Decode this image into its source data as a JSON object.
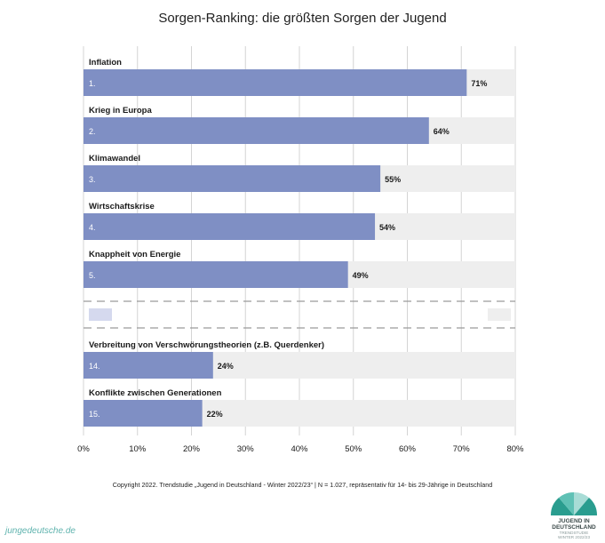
{
  "title": "Sorgen-Ranking: die größten Sorgen der Jugend",
  "chart_data": {
    "type": "bar",
    "orientation": "horizontal",
    "xlim": [
      0,
      80
    ],
    "xticks": [
      "0%",
      "10%",
      "20%",
      "30%",
      "40%",
      "50%",
      "60%",
      "70%",
      "80%"
    ],
    "grid": true,
    "bar_color": "#7f8fc4",
    "track_color": "#eeeeee",
    "items": [
      {
        "label": "Inflation",
        "rank": "1.",
        "value": 71,
        "value_label": "71%"
      },
      {
        "label": "Krieg in Europa",
        "rank": "2.",
        "value": 64,
        "value_label": "64%"
      },
      {
        "label": "Klimawandel",
        "rank": "3.",
        "value": 55,
        "value_label": "55%"
      },
      {
        "label": "Wirtschaftskrise",
        "rank": "4.",
        "value": 54,
        "value_label": "54%"
      },
      {
        "label": "Knappheit von Energie",
        "rank": "5.",
        "value": 49,
        "value_label": "49%"
      },
      {
        "label": "Verbreitung von Verschwörungstheorien (z.B. Querdenker)",
        "rank": "14.",
        "value": 24,
        "value_label": "24%"
      },
      {
        "label": "Konflikte zwischen Generationen",
        "rank": "15.",
        "value": 22,
        "value_label": "22%"
      }
    ]
  },
  "footer": {
    "copyright": "Copyright 2022. Trendstudie „Jugend in Deutschland - Winter 2022/23“ | N = 1.027, repräsentativ für 14- bis 29-Jährige in Deutschland",
    "website": "jungedeutsche.de"
  },
  "logo": {
    "line1": "JUGEND IN",
    "line2": "DEUTSCHLAND",
    "line3": "TRENDSTUDIE",
    "line4": "WINTER 2022/23",
    "colors": [
      "#2a9d8f",
      "#5fc1b5",
      "#a8dcd6"
    ]
  }
}
